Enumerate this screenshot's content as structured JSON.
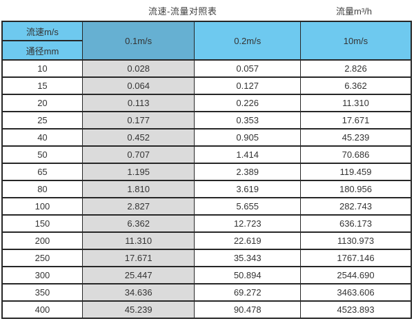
{
  "titles": {
    "main": "流速-流量对照表",
    "right": "流量m³/h"
  },
  "table": {
    "corner_top": "流速m/s",
    "corner_bottom": "通径mm",
    "velocity_columns": [
      "0.1m/s",
      "0.2m/s",
      "10m/s"
    ],
    "rows": [
      {
        "dn": "10",
        "v1": "0.028",
        "v2": "0.057",
        "v3": "2.826"
      },
      {
        "dn": "15",
        "v1": "0.064",
        "v2": "0.127",
        "v3": "6.362"
      },
      {
        "dn": "20",
        "v1": "0.113",
        "v2": "0.226",
        "v3": "11.310"
      },
      {
        "dn": "25",
        "v1": "0.177",
        "v2": "0.353",
        "v3": "17.671"
      },
      {
        "dn": "40",
        "v1": "0.452",
        "v2": "0.905",
        "v3": "45.239"
      },
      {
        "dn": "50",
        "v1": "0.707",
        "v2": "1.414",
        "v3": "70.686"
      },
      {
        "dn": "65",
        "v1": "1.195",
        "v2": "2.389",
        "v3": "119.459"
      },
      {
        "dn": "80",
        "v1": "1.810",
        "v2": "3.619",
        "v3": "180.956"
      },
      {
        "dn": "100",
        "v1": "2.827",
        "v2": "5.655",
        "v3": "282.743"
      },
      {
        "dn": "150",
        "v1": "6.362",
        "v2": "12.723",
        "v3": "636.173"
      },
      {
        "dn": "200",
        "v1": "11.310",
        "v2": "22.619",
        "v3": "1130.973"
      },
      {
        "dn": "250",
        "v1": "17.671",
        "v2": "35.343",
        "v3": "1767.146"
      },
      {
        "dn": "300",
        "v1": "25.447",
        "v2": "50.894",
        "v3": "2544.690"
      },
      {
        "dn": "350",
        "v1": "34.636",
        "v2": "69.272",
        "v3": "3463.606"
      },
      {
        "dn": "400",
        "v1": "45.239",
        "v2": "90.478",
        "v3": "4523.893"
      }
    ]
  },
  "colors": {
    "header_light_blue": "#6EC9EF",
    "header_dark_blue": "#66B0D2",
    "shaded_column_gray": "#DBDBDB",
    "border": "#262626"
  },
  "chart_data": {
    "type": "table",
    "title": "流速-流量对照表",
    "value_unit": "流量m³/h",
    "row_axis_label": "通径mm",
    "column_axis_label": "流速m/s",
    "categories": [
      10,
      15,
      20,
      25,
      40,
      50,
      65,
      80,
      100,
      150,
      200,
      250,
      300,
      350,
      400
    ],
    "series": [
      {
        "name": "0.1m/s",
        "values": [
          0.028,
          0.064,
          0.113,
          0.177,
          0.452,
          0.707,
          1.195,
          1.81,
          2.827,
          6.362,
          11.31,
          17.671,
          25.447,
          34.636,
          45.239
        ]
      },
      {
        "name": "0.2m/s",
        "values": [
          0.057,
          0.127,
          0.226,
          0.353,
          0.905,
          1.414,
          2.389,
          3.619,
          5.655,
          12.723,
          22.619,
          35.343,
          50.894,
          69.272,
          90.478
        ]
      },
      {
        "name": "10m/s",
        "values": [
          2.826,
          6.362,
          11.31,
          17.671,
          45.239,
          70.686,
          119.459,
          180.956,
          282.743,
          636.173,
          1130.973,
          1767.146,
          2544.69,
          3463.606,
          4523.893
        ]
      }
    ]
  }
}
